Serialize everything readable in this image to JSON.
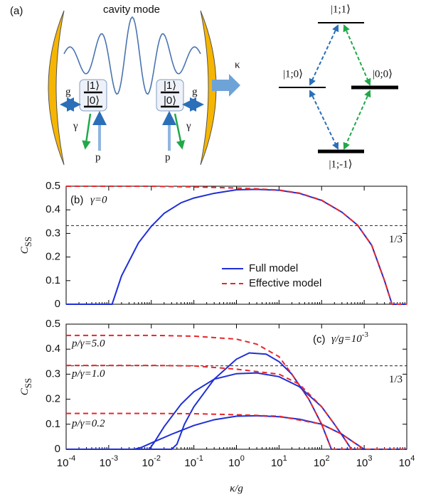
{
  "schematic": {
    "panel_label": "(a)",
    "cavity_label": "cavity mode",
    "kappa": "κ",
    "coupling_left": "g",
    "coupling_right": "g",
    "decay_left": "γ",
    "decay_right": "γ",
    "pump_left": "p",
    "pump_right": "p",
    "atom_left": {
      "upper": "|1⟩",
      "lower": "|0⟩"
    },
    "atom_right": {
      "upper": "|1⟩",
      "lower": "|0⟩"
    },
    "levels": {
      "top": "|1;1⟩",
      "left": "|1;0⟩",
      "right": "|0;0⟩",
      "bottom": "|1;-1⟩"
    }
  },
  "chart_data": [
    {
      "type": "line",
      "panel_label": "(b)",
      "annotation": "γ=0",
      "ylabel": "C",
      "ylabel_sub": "SS",
      "xscale": "log",
      "xlim": [
        0.0001,
        10000
      ],
      "xticks": [
        0.0001,
        0.001,
        0.01,
        0.1,
        1,
        10,
        100,
        1000,
        10000
      ],
      "ylim": [
        0,
        0.5
      ],
      "yticks": [
        0,
        0.1,
        0.2,
        0.3,
        0.4,
        0.5
      ],
      "reference_line": {
        "value": 0.3333,
        "label": "1/3"
      },
      "legend": "center-right",
      "series": [
        {
          "name": "Full model",
          "color": "#1f2fd6",
          "style": "solid",
          "x": [
            0.0001,
            0.001,
            0.0012,
            0.002,
            0.005,
            0.01,
            0.02,
            0.05,
            0.1,
            0.3,
            1,
            3,
            10,
            30,
            100,
            300,
            700,
            1500,
            3000,
            4500,
            10000
          ],
          "values": [
            0,
            0,
            0,
            0.12,
            0.26,
            0.33,
            0.385,
            0.43,
            0.45,
            0.47,
            0.485,
            0.487,
            0.483,
            0.47,
            0.44,
            0.39,
            0.335,
            0.25,
            0.1,
            0,
            0
          ]
        },
        {
          "name": "Effective model",
          "color": "#e8262a",
          "style": "dashed",
          "x": [
            0.0001,
            0.001,
            0.01,
            0.1,
            0.3,
            1,
            3,
            10,
            30,
            100,
            300,
            700,
            1500,
            3000,
            4500,
            10000
          ],
          "values": [
            0.5,
            0.5,
            0.5,
            0.497,
            0.495,
            0.492,
            0.489,
            0.484,
            0.471,
            0.441,
            0.39,
            0.335,
            0.25,
            0.1,
            0,
            0
          ]
        }
      ]
    },
    {
      "type": "line",
      "panel_label": "(c)",
      "annotation": "γ/g=10",
      "annotation_power": "-3",
      "ylabel": "C",
      "ylabel_sub": "SS",
      "xlabel": "κ/g",
      "xscale": "log",
      "xlim": [
        0.0001,
        10000
      ],
      "xticks": [
        {
          "value": 0.0001,
          "label": "10",
          "power": "-4"
        },
        {
          "value": 0.001,
          "label": "10",
          "power": "-3"
        },
        {
          "value": 0.01,
          "label": "10",
          "power": "-2"
        },
        {
          "value": 0.1,
          "label": "10",
          "power": "-1"
        },
        {
          "value": 1,
          "label": "10",
          "power": "0"
        },
        {
          "value": 10,
          "label": "10",
          "power": "1"
        },
        {
          "value": 100,
          "label": "10",
          "power": "2"
        },
        {
          "value": 1000,
          "label": "10",
          "power": "3"
        },
        {
          "value": 10000,
          "label": "10",
          "power": "4"
        }
      ],
      "ylim": [
        0,
        0.5
      ],
      "yticks": [
        0,
        0.1,
        0.2,
        0.3,
        0.4,
        0.5
      ],
      "reference_line": {
        "value": 0.3333,
        "label": "1/3"
      },
      "curve_labels": [
        "p/γ=5.0",
        "p/γ=1.0",
        "p/γ=0.2"
      ],
      "series": [
        {
          "color": "#1f2fd6",
          "style": "solid",
          "x": [
            0.0001,
            0.03,
            0.04,
            0.06,
            0.1,
            0.3,
            1,
            2,
            5,
            10,
            20,
            50,
            100,
            170,
            10000
          ],
          "values": [
            0,
            0,
            0.02,
            0.1,
            0.17,
            0.28,
            0.36,
            0.385,
            0.38,
            0.35,
            0.3,
            0.2,
            0.1,
            0,
            0
          ]
        },
        {
          "color": "#e8262a",
          "style": "dashed",
          "x": [
            0.0001,
            0.01,
            0.1,
            1,
            3,
            10,
            20,
            50,
            100,
            170,
            10000
          ],
          "values": [
            0.455,
            0.455,
            0.452,
            0.44,
            0.42,
            0.37,
            0.3,
            0.2,
            0.1,
            0,
            0
          ]
        },
        {
          "color": "#1f2fd6",
          "style": "solid",
          "x": [
            0.0001,
            0.009,
            0.012,
            0.02,
            0.05,
            0.1,
            0.3,
            1,
            3,
            10,
            30,
            100,
            200,
            350,
            500,
            10000
          ],
          "values": [
            0,
            0,
            0.03,
            0.09,
            0.18,
            0.23,
            0.28,
            0.302,
            0.305,
            0.29,
            0.25,
            0.17,
            0.1,
            0.04,
            0,
            0
          ]
        },
        {
          "color": "#e8262a",
          "style": "dashed",
          "x": [
            0.0001,
            0.01,
            0.1,
            1,
            10,
            30,
            100,
            200,
            350,
            500,
            10000
          ],
          "values": [
            0.335,
            0.335,
            0.333,
            0.32,
            0.3,
            0.26,
            0.17,
            0.1,
            0.04,
            0,
            0
          ]
        },
        {
          "color": "#1f2fd6",
          "style": "solid",
          "x": [
            0.0001,
            0.004,
            0.006,
            0.01,
            0.03,
            0.1,
            0.3,
            1,
            3,
            10,
            30,
            100,
            300,
            600,
            1000,
            10000
          ],
          "values": [
            0,
            0,
            0.008,
            0.025,
            0.06,
            0.095,
            0.118,
            0.132,
            0.134,
            0.13,
            0.12,
            0.1,
            0.06,
            0.025,
            0,
            0
          ]
        },
        {
          "color": "#e8262a",
          "style": "dashed",
          "x": [
            0.0001,
            0.01,
            0.1,
            1,
            10,
            100,
            300,
            600,
            1000,
            10000
          ],
          "values": [
            0.143,
            0.143,
            0.142,
            0.138,
            0.132,
            0.1,
            0.06,
            0.025,
            0,
            0
          ]
        }
      ]
    }
  ]
}
